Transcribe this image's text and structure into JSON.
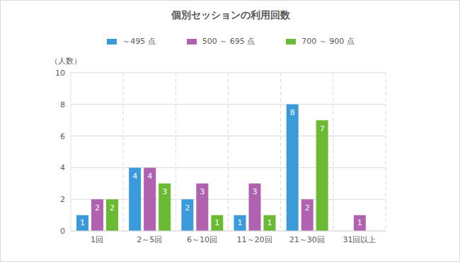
{
  "chart_data": {
    "type": "bar",
    "title": "個別セッションの利用回数",
    "y_label": "（人数）",
    "categories": [
      "1回",
      "2～5回",
      "6～10回",
      "11～20回",
      "21～30回",
      "31回以上"
    ],
    "series": [
      {
        "name": "～495 点",
        "color": "#3b9ad9",
        "values": [
          1,
          4,
          2,
          1,
          8,
          0
        ]
      },
      {
        "name": "500 ～ 695 点",
        "color": "#b062b0",
        "values": [
          2,
          4,
          3,
          3,
          2,
          1
        ]
      },
      {
        "name": "700 ～ 900 点",
        "color": "#6abb33",
        "values": [
          2,
          3,
          1,
          1,
          7,
          0
        ]
      }
    ],
    "ylim": [
      0,
      10
    ],
    "yticks": [
      0,
      2,
      4,
      6,
      8,
      10
    ],
    "grid": true,
    "data_labels": true,
    "legend": "top"
  }
}
